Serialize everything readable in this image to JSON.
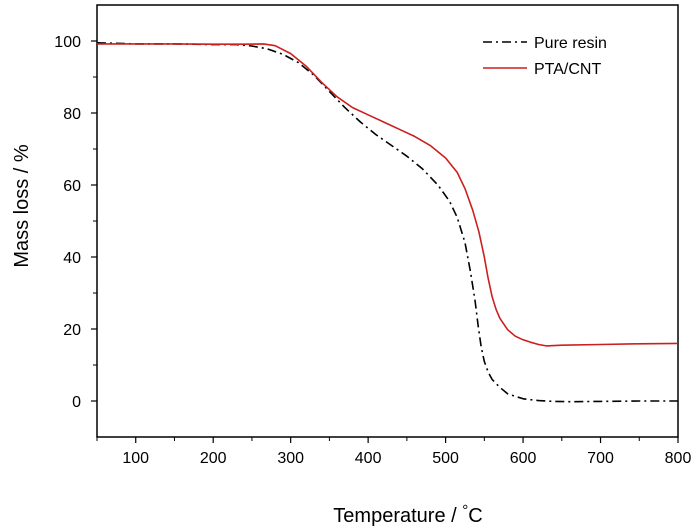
{
  "chart_data": {
    "type": "line",
    "title": "",
    "xlabel": "Temperature / °C",
    "ylabel": "Mass loss / %",
    "xlim": [
      50,
      800
    ],
    "ylim": [
      -10,
      110
    ],
    "xticks": [
      100,
      200,
      300,
      400,
      500,
      600,
      700,
      800
    ],
    "yticks": [
      0,
      20,
      40,
      60,
      80,
      100
    ],
    "grid": false,
    "legend_position": "top-right",
    "series": [
      {
        "name": "Pure resin",
        "color": "#000000",
        "line_style": "dash-dot",
        "x": [
          50,
          100,
          150,
          200,
          230,
          250,
          270,
          290,
          310,
          330,
          350,
          370,
          390,
          410,
          430,
          450,
          470,
          490,
          505,
          515,
          525,
          532,
          538,
          542,
          546,
          550,
          555,
          560,
          570,
          580,
          600,
          620,
          640,
          660,
          700,
          750,
          800
        ],
        "y": [
          99.5,
          99.2,
          99.2,
          99.0,
          99.0,
          98.6,
          97.8,
          96.3,
          94.0,
          90.5,
          86.0,
          81.5,
          77.5,
          74.0,
          71.0,
          68.0,
          64.5,
          60.0,
          55.5,
          51.0,
          44.0,
          36.0,
          28.0,
          21.0,
          15.0,
          11.0,
          8.0,
          6.0,
          3.8,
          2.0,
          0.6,
          0.1,
          -0.1,
          -0.2,
          -0.1,
          0.0,
          0.0
        ]
      },
      {
        "name": "PTA/CNT",
        "color": "#cc1f1f",
        "line_style": "solid",
        "x": [
          50,
          100,
          150,
          200,
          240,
          265,
          280,
          300,
          320,
          340,
          360,
          380,
          400,
          420,
          440,
          460,
          480,
          500,
          515,
          525,
          535,
          543,
          550,
          555,
          560,
          565,
          570,
          580,
          590,
          600,
          610,
          620,
          630,
          650,
          700,
          750,
          800
        ],
        "y": [
          99.2,
          99.2,
          99.2,
          99.1,
          99.1,
          99.2,
          98.7,
          96.5,
          93.0,
          88.5,
          84.5,
          81.5,
          79.5,
          77.5,
          75.5,
          73.5,
          71.0,
          67.5,
          63.5,
          59.0,
          53.0,
          47.0,
          40.0,
          34.0,
          29.0,
          25.5,
          23.0,
          19.8,
          18.0,
          17.0,
          16.3,
          15.7,
          15.3,
          15.5,
          15.7,
          15.9,
          16.0
        ]
      }
    ]
  }
}
